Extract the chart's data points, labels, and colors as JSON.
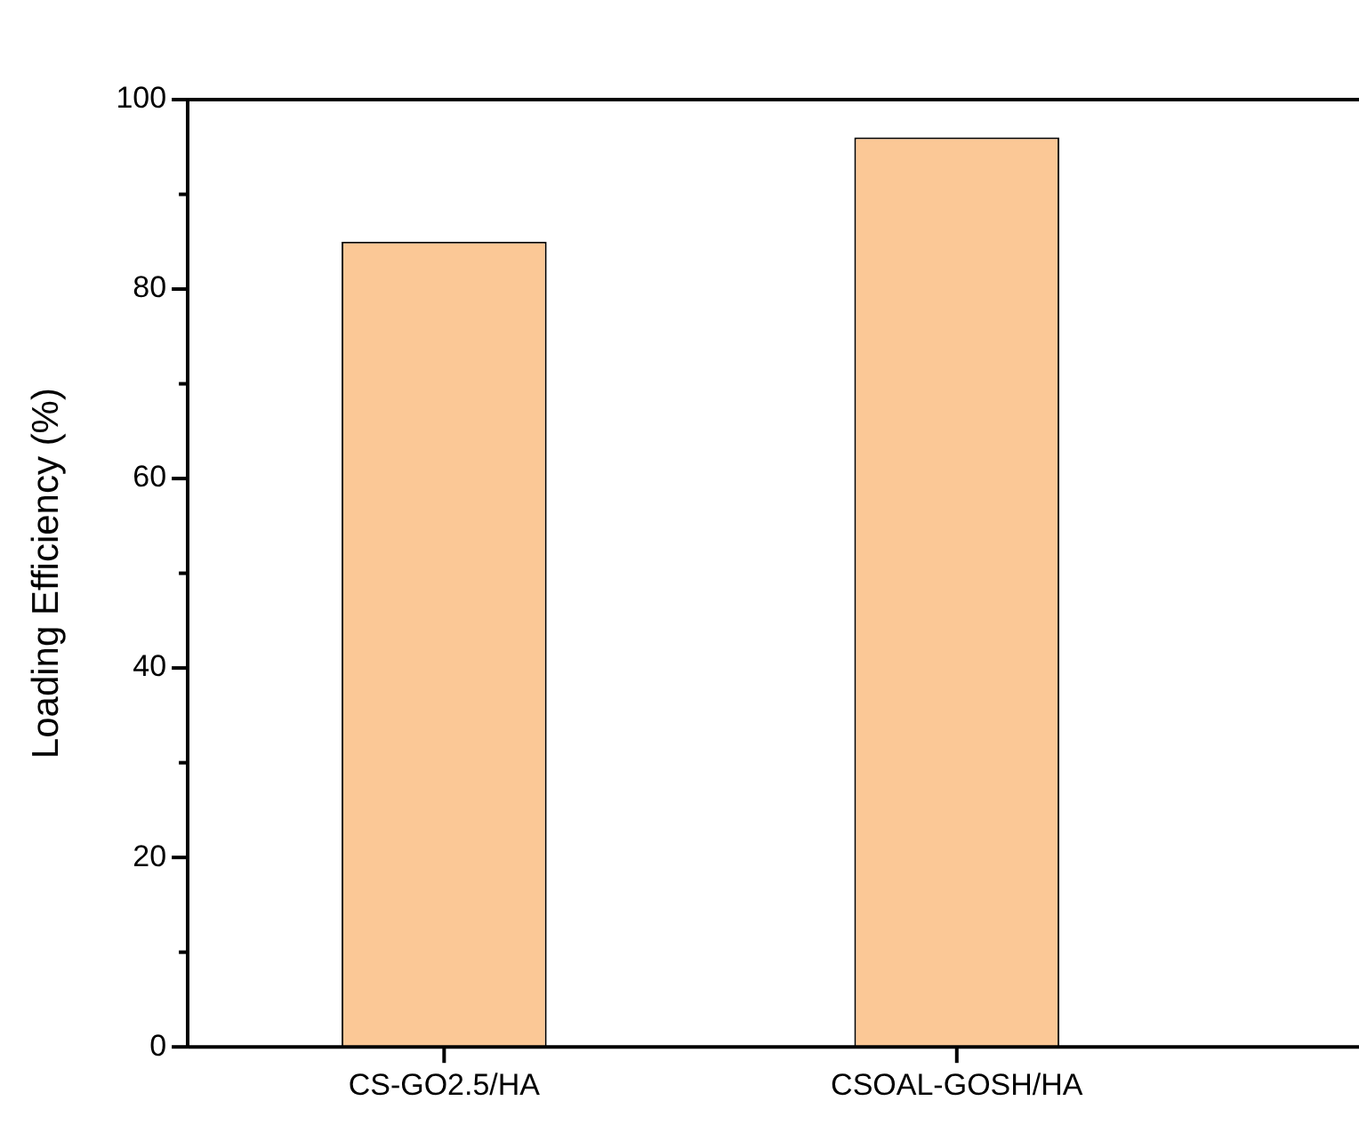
{
  "chart_data": {
    "type": "bar",
    "ylabel": "Loading Efficiency (%)",
    "categories": [
      "CS-GO2.5/HA",
      "CSOAL-GOSH/HA"
    ],
    "values": [
      85,
      96
    ],
    "color": "#fbc896",
    "ylim": [
      0,
      100
    ],
    "yticks": [
      0,
      {
        "value": 10,
        "label": null
      },
      20,
      {
        "value": 30,
        "label": null
      },
      40,
      {
        "value": 50,
        "label": null
      },
      60,
      {
        "value": 70,
        "label": null
      },
      80,
      {
        "value": 90,
        "label": null
      },
      100
    ],
    "grid": false,
    "legend": false
  }
}
